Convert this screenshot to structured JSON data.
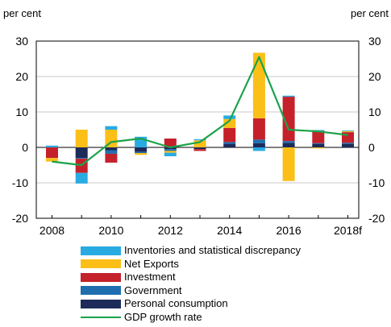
{
  "chart_data": {
    "type": "bar",
    "stacked": true,
    "title": "",
    "ylabel_left": "per cent",
    "ylabel_right": "per cent",
    "ylim": [
      -20,
      30
    ],
    "yticks": [
      -20,
      -10,
      0,
      10,
      20,
      30
    ],
    "grid": true,
    "legend_position": "bottom",
    "categories": [
      "2008",
      "2009",
      "2010",
      "2011",
      "2012",
      "2013",
      "2014",
      "2015",
      "2016",
      "2017",
      "2018f"
    ],
    "xtick_labels": [
      "2008",
      "2010",
      "2012",
      "2014",
      "2016",
      "2018f"
    ],
    "series": [
      {
        "name": "Inventories and statistical discrepancy",
        "color": "#29abe2",
        "values": [
          0.5,
          -3,
          1,
          3,
          -1,
          0.3,
          1,
          -1,
          0.3,
          0.2,
          0.2
        ]
      },
      {
        "name": "Net Exports",
        "color": "#fbbf17",
        "values": [
          -1,
          5,
          5,
          -0.5,
          -0.5,
          2,
          2.5,
          18.5,
          -9.5,
          -0.3,
          0.3
        ]
      },
      {
        "name": "Investment",
        "color": "#c4212a",
        "values": [
          -3,
          -4,
          -2.5,
          0,
          2.5,
          -0.5,
          4,
          6,
          12.5,
          3.5,
          3
        ]
      },
      {
        "name": "Government",
        "color": "#1f6fb0",
        "values": [
          0,
          -0.2,
          -1,
          -0.3,
          -0.5,
          0,
          0.5,
          1,
          0.5,
          0.2,
          0.3
        ]
      },
      {
        "name": "Personal consumption",
        "color": "#1c2b5a",
        "values": [
          0,
          -3,
          -0.8,
          -1.3,
          -0.5,
          -0.5,
          1,
          1.2,
          1.3,
          1,
          1
        ]
      }
    ],
    "line_series": {
      "name": "GDP growth rate",
      "color": "#1aa34a",
      "values": [
        -4,
        -5,
        1.5,
        2.5,
        0,
        1.5,
        7.5,
        25.5,
        5,
        4.5,
        3.5
      ]
    }
  }
}
